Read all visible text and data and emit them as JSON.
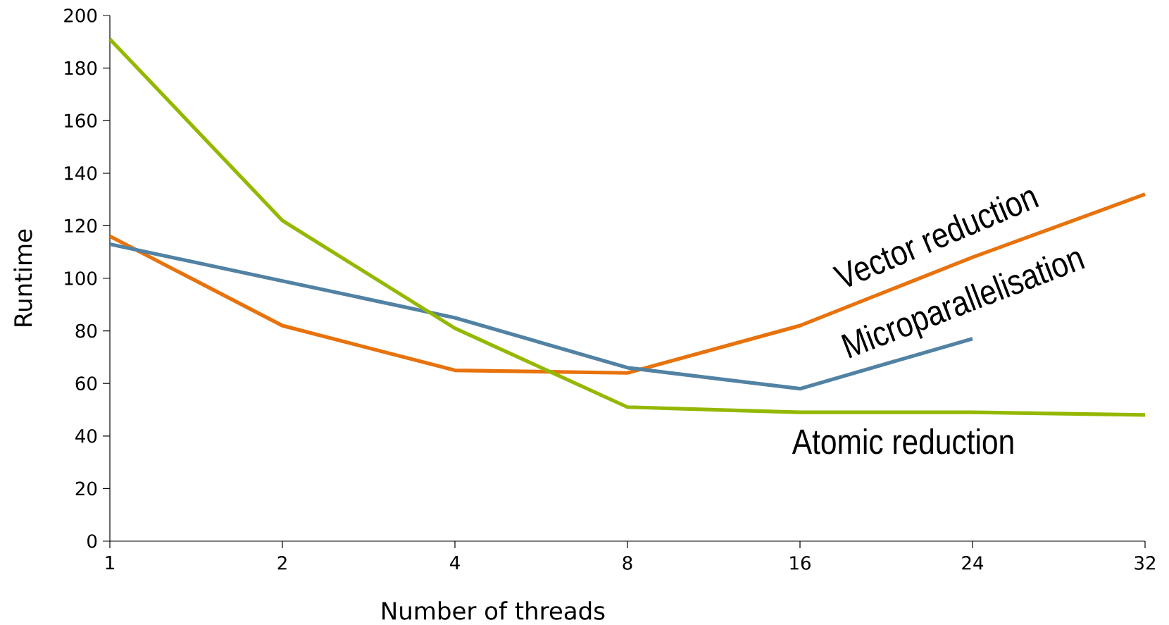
{
  "chart_data": {
    "type": "line",
    "xlabel": "Number of threads",
    "ylabel": "Runtime",
    "categories": [
      "1",
      "2",
      "4",
      "8",
      "16",
      "24",
      "32"
    ],
    "ylim": [
      0,
      200
    ],
    "yticks": [
      0,
      20,
      40,
      60,
      80,
      100,
      120,
      140,
      160,
      180,
      200
    ],
    "series": [
      {
        "name": "Vector reduction",
        "color": "#e8720c",
        "values": [
          116,
          82,
          65,
          64,
          82,
          108,
          132
        ]
      },
      {
        "name": "Microparallelisation",
        "color": "#5282a3",
        "values": [
          113,
          99,
          85,
          66,
          58,
          77,
          null
        ]
      },
      {
        "name": "Atomic reduction",
        "color": "#94b800",
        "values": [
          191,
          122,
          81,
          51,
          49,
          49,
          48
        ]
      }
    ]
  }
}
